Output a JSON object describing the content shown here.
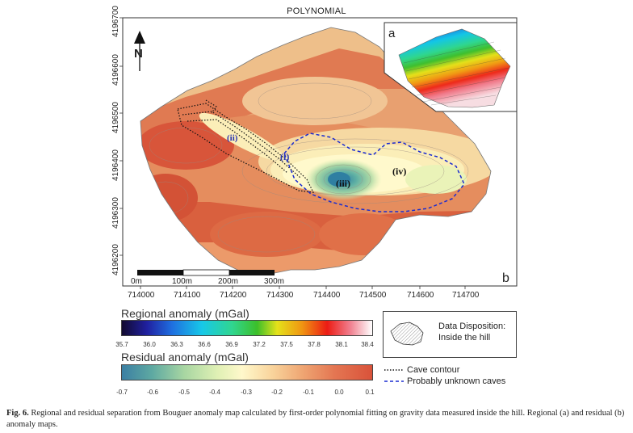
{
  "map": {
    "title": "POLYNOMIAL",
    "y_ticks": [
      "4196700",
      "4196600",
      "4196500",
      "4196400",
      "4196300",
      "4196200"
    ],
    "x_ticks": [
      "714000",
      "714100",
      "714200",
      "714300",
      "714400",
      "714500",
      "714600",
      "714700"
    ],
    "scale_labels": [
      "0m",
      "100m",
      "200m",
      "300m"
    ],
    "panel_b_label": "b",
    "inset_a_label": "a",
    "north_label": "N",
    "zone_labels": [
      "(i)",
      "(ii)",
      "(iii)",
      "(iv)"
    ]
  },
  "regional_colorbar": {
    "title": "Regional anomaly (mGal)",
    "ticks": [
      "35.7",
      "36.0",
      "36.3",
      "36.6",
      "36.9",
      "37.2",
      "37.5",
      "37.8",
      "38.1",
      "38.4"
    ]
  },
  "residual_colorbar": {
    "title": "Residual anomaly (mGal)",
    "ticks": [
      "-0.7",
      "-0.6",
      "-0.5",
      "-0.4",
      "-0.3",
      "-0.2",
      "-0.1",
      "0.0",
      "0.1"
    ]
  },
  "data_disposition": {
    "text_line1": "Data Disposition:",
    "text_line2": "Inside the hill"
  },
  "legend": {
    "cave_contour": "Cave contour",
    "unknown_caves": "Probably unknown caves"
  },
  "caption": {
    "label": "Fig. 6.",
    "text": " Regional and residual separation from Bouguer anomaly map calculated by first-order polynomial fitting on gravity data measured inside the hill. Regional (a) and residual (b) anomaly maps."
  },
  "colors": {
    "cave_contour": "#111111",
    "unknown_caves": "#1a2bd0",
    "zone_label": "#2a35b0"
  }
}
